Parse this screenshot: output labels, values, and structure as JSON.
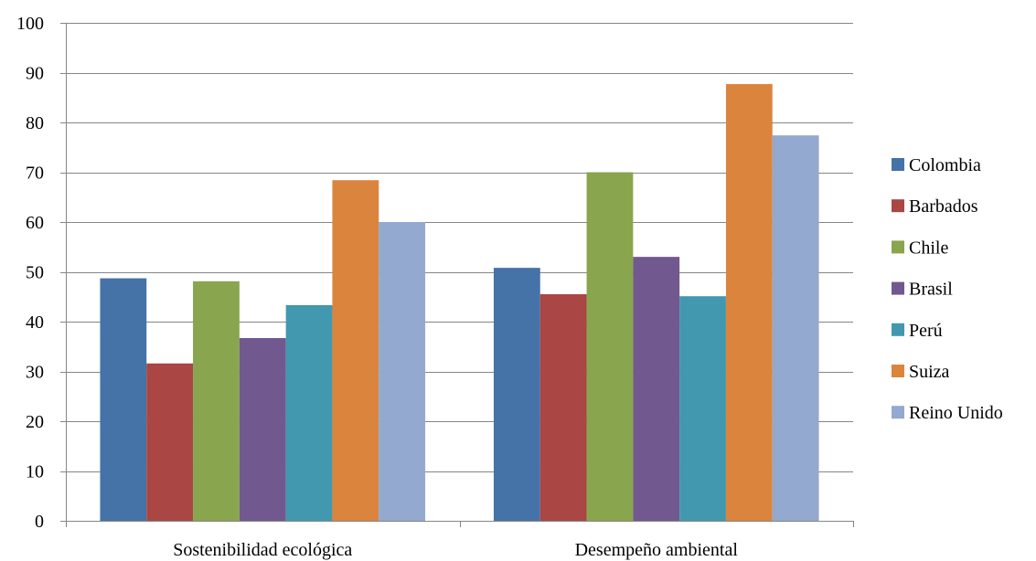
{
  "chart_data": {
    "type": "bar",
    "categories": [
      "Sostenibilidad ecológica",
      "Desempeño ambiental"
    ],
    "series": [
      {
        "name": "Colombia",
        "color": "#4572A7",
        "values": [
          48.7,
          50.8
        ]
      },
      {
        "name": "Barbados",
        "color": "#AA4643",
        "values": [
          31.6,
          45.5
        ]
      },
      {
        "name": "Chile",
        "color": "#89A54E",
        "values": [
          48.1,
          70.0
        ]
      },
      {
        "name": "Brasil",
        "color": "#71588F",
        "values": [
          36.7,
          53.0
        ]
      },
      {
        "name": "Perú",
        "color": "#4198AF",
        "values": [
          43.3,
          45.1
        ]
      },
      {
        "name": "Suiza",
        "color": "#DB843D",
        "values": [
          68.4,
          87.7
        ]
      },
      {
        "name": "Reino Unido",
        "color": "#93A9CF",
        "values": [
          60.0,
          77.4
        ]
      }
    ],
    "yticks": [
      "0",
      "10",
      "20",
      "30",
      "40",
      "50",
      "60",
      "70",
      "80",
      "90",
      "100"
    ],
    "ylim": [
      0,
      100
    ],
    "grid": true,
    "legend": "right"
  }
}
